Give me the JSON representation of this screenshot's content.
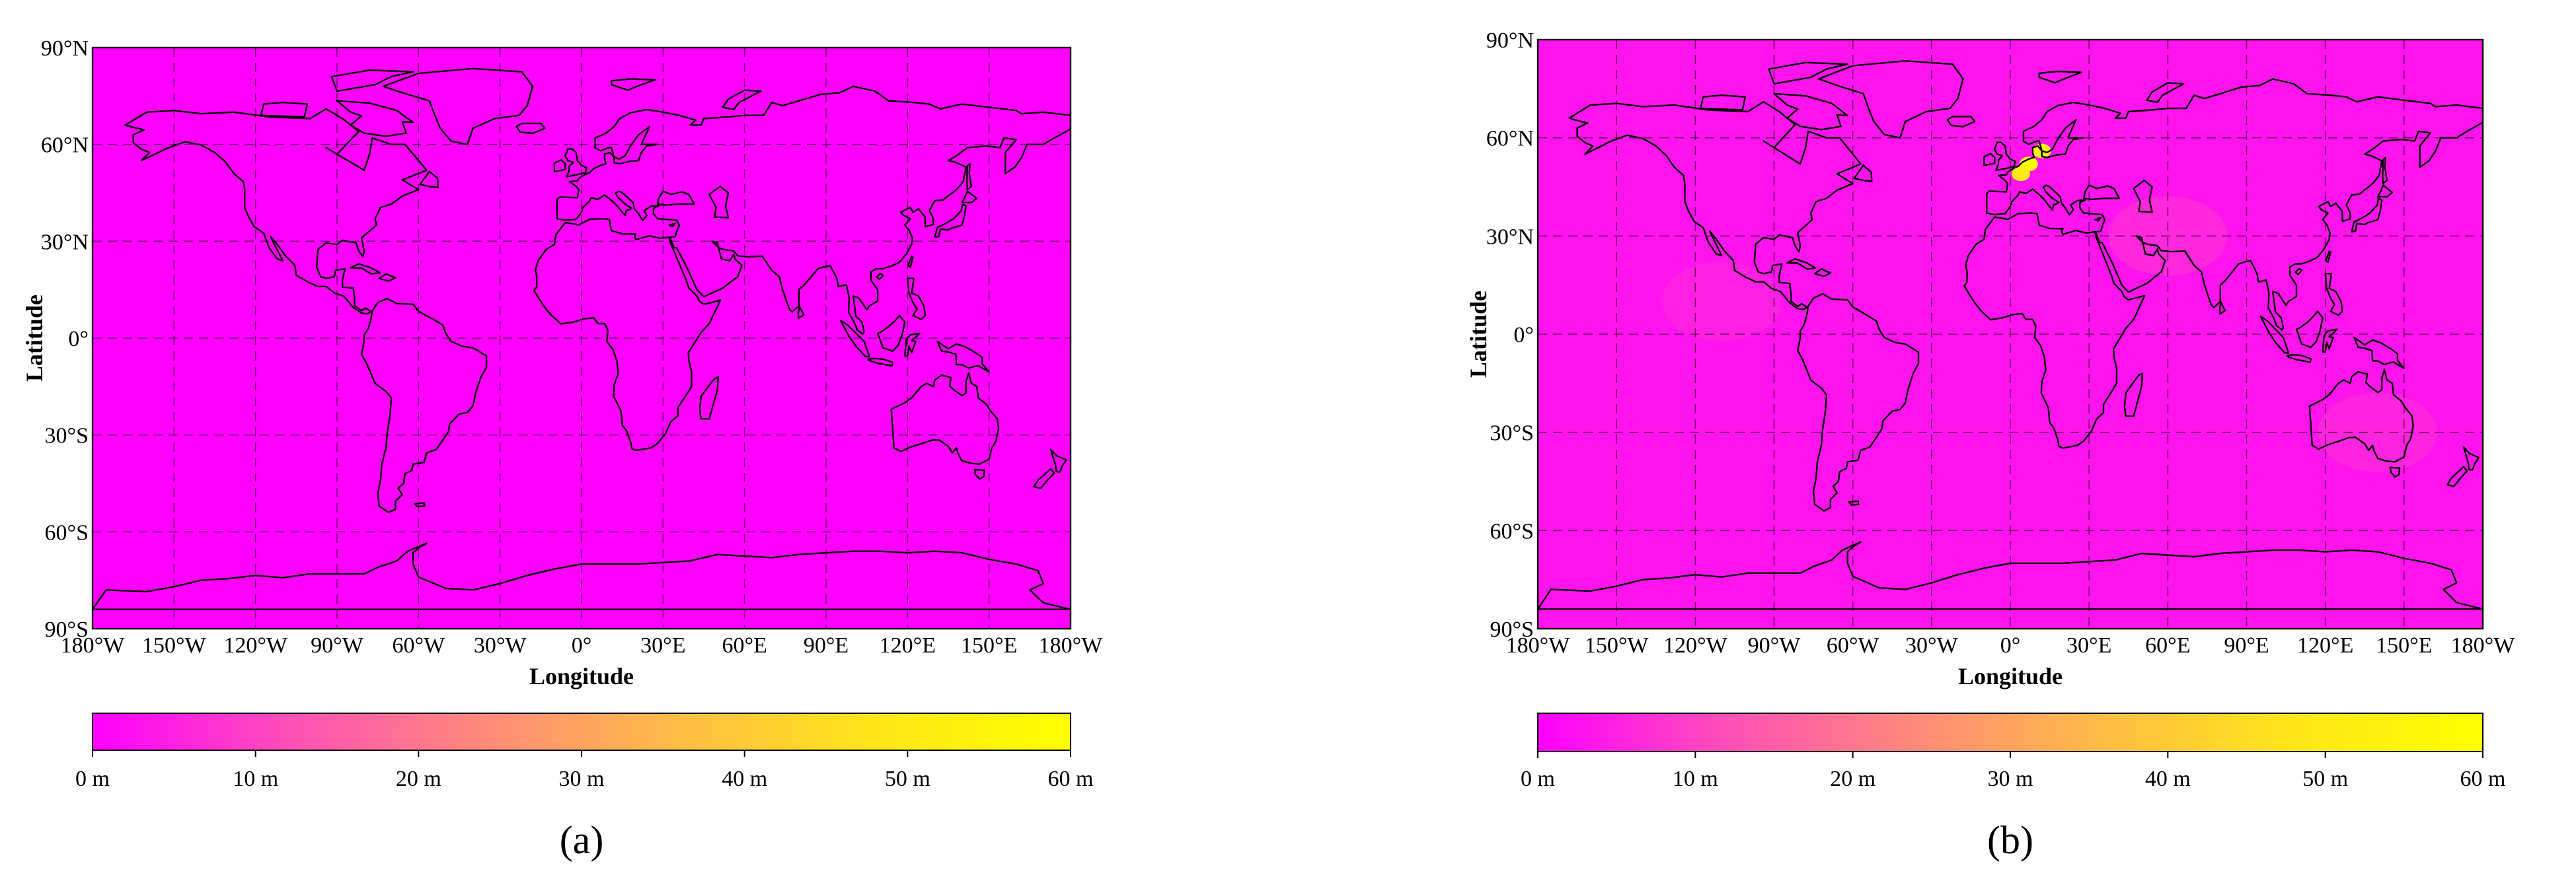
{
  "chart_data": [
    {
      "type": "heatmap",
      "panel_label": "(a)",
      "xlabel": "Longitude",
      "ylabel": "Latitude",
      "xlim": [
        -180,
        180
      ],
      "ylim": [
        -90,
        90
      ],
      "xticks": [
        {
          "value": -180,
          "label": "180°W"
        },
        {
          "value": -150,
          "label": "150°W"
        },
        {
          "value": -120,
          "label": "120°W"
        },
        {
          "value": -90,
          "label": "90°W"
        },
        {
          "value": -60,
          "label": "60°W"
        },
        {
          "value": -30,
          "label": "30°W"
        },
        {
          "value": 0,
          "label": "0°"
        },
        {
          "value": 30,
          "label": "30°E"
        },
        {
          "value": 60,
          "label": "60°E"
        },
        {
          "value": 90,
          "label": "90°E"
        },
        {
          "value": 120,
          "label": "120°E"
        },
        {
          "value": 150,
          "label": "150°E"
        },
        {
          "value": 180,
          "label": "180°W"
        }
      ],
      "yticks": [
        {
          "value": 90,
          "label": "90°N"
        },
        {
          "value": 60,
          "label": "60°N"
        },
        {
          "value": 30,
          "label": "30°N"
        },
        {
          "value": 0,
          "label": "0°"
        },
        {
          "value": -30,
          "label": "30°S"
        },
        {
          "value": -60,
          "label": "60°S"
        },
        {
          "value": -90,
          "label": "90°S"
        }
      ],
      "grid": true,
      "colorbar": {
        "range": [
          0,
          60
        ],
        "ticks": [
          {
            "value": 0,
            "label": "0 m"
          },
          {
            "value": 10,
            "label": "10 m"
          },
          {
            "value": 20,
            "label": "20 m"
          },
          {
            "value": 30,
            "label": "30 m"
          },
          {
            "value": 40,
            "label": "40 m"
          },
          {
            "value": 50,
            "label": "50 m"
          },
          {
            "value": 60,
            "label": "60 m"
          }
        ],
        "colors": [
          "#ff00ff",
          "#ff4fb8",
          "#ff8a7a",
          "#ffbd45",
          "#ffe61a",
          "#ffff00"
        ]
      },
      "background_value": 0,
      "hotspots": []
    },
    {
      "type": "heatmap",
      "panel_label": "(b)",
      "xlabel": "Longitude",
      "ylabel": "Latitude",
      "xlim": [
        -180,
        180
      ],
      "ylim": [
        -90,
        90
      ],
      "xticks": [
        {
          "value": -180,
          "label": "180°W"
        },
        {
          "value": -150,
          "label": "150°W"
        },
        {
          "value": -120,
          "label": "120°W"
        },
        {
          "value": -90,
          "label": "90°W"
        },
        {
          "value": -60,
          "label": "60°W"
        },
        {
          "value": -30,
          "label": "30°W"
        },
        {
          "value": 0,
          "label": "0°"
        },
        {
          "value": 30,
          "label": "30°E"
        },
        {
          "value": 60,
          "label": "60°E"
        },
        {
          "value": 90,
          "label": "90°E"
        },
        {
          "value": 120,
          "label": "120°E"
        },
        {
          "value": 150,
          "label": "150°E"
        },
        {
          "value": 180,
          "label": "180°W"
        }
      ],
      "yticks": [
        {
          "value": 90,
          "label": "90°N"
        },
        {
          "value": 60,
          "label": "60°N"
        },
        {
          "value": 30,
          "label": "30°N"
        },
        {
          "value": 0,
          "label": "0°"
        },
        {
          "value": -30,
          "label": "30°S"
        },
        {
          "value": -60,
          "label": "60°S"
        },
        {
          "value": -90,
          "label": "90°S"
        }
      ],
      "grid": true,
      "colorbar": {
        "range": [
          0,
          60
        ],
        "ticks": [
          {
            "value": 0,
            "label": "0 m"
          },
          {
            "value": 10,
            "label": "10 m"
          },
          {
            "value": 20,
            "label": "20 m"
          },
          {
            "value": 30,
            "label": "30 m"
          },
          {
            "value": 40,
            "label": "40 m"
          },
          {
            "value": 50,
            "label": "50 m"
          },
          {
            "value": 60,
            "label": "60 m"
          }
        ],
        "colors": [
          "#ff00ff",
          "#ff4fb8",
          "#ff8a7a",
          "#ffbd45",
          "#ffe61a",
          "#ffff00"
        ]
      },
      "background_value": 3,
      "hotspots": [
        {
          "lon": 7,
          "lat": 52,
          "value": 60
        },
        {
          "lon": 12,
          "lat": 56,
          "value": 55
        },
        {
          "lon": 4,
          "lat": 49,
          "value": 50
        },
        {
          "lon": 60,
          "lat": 30,
          "value": 8
        },
        {
          "lon": -110,
          "lat": 10,
          "value": 6
        },
        {
          "lon": 140,
          "lat": -30,
          "value": 7
        }
      ]
    }
  ]
}
